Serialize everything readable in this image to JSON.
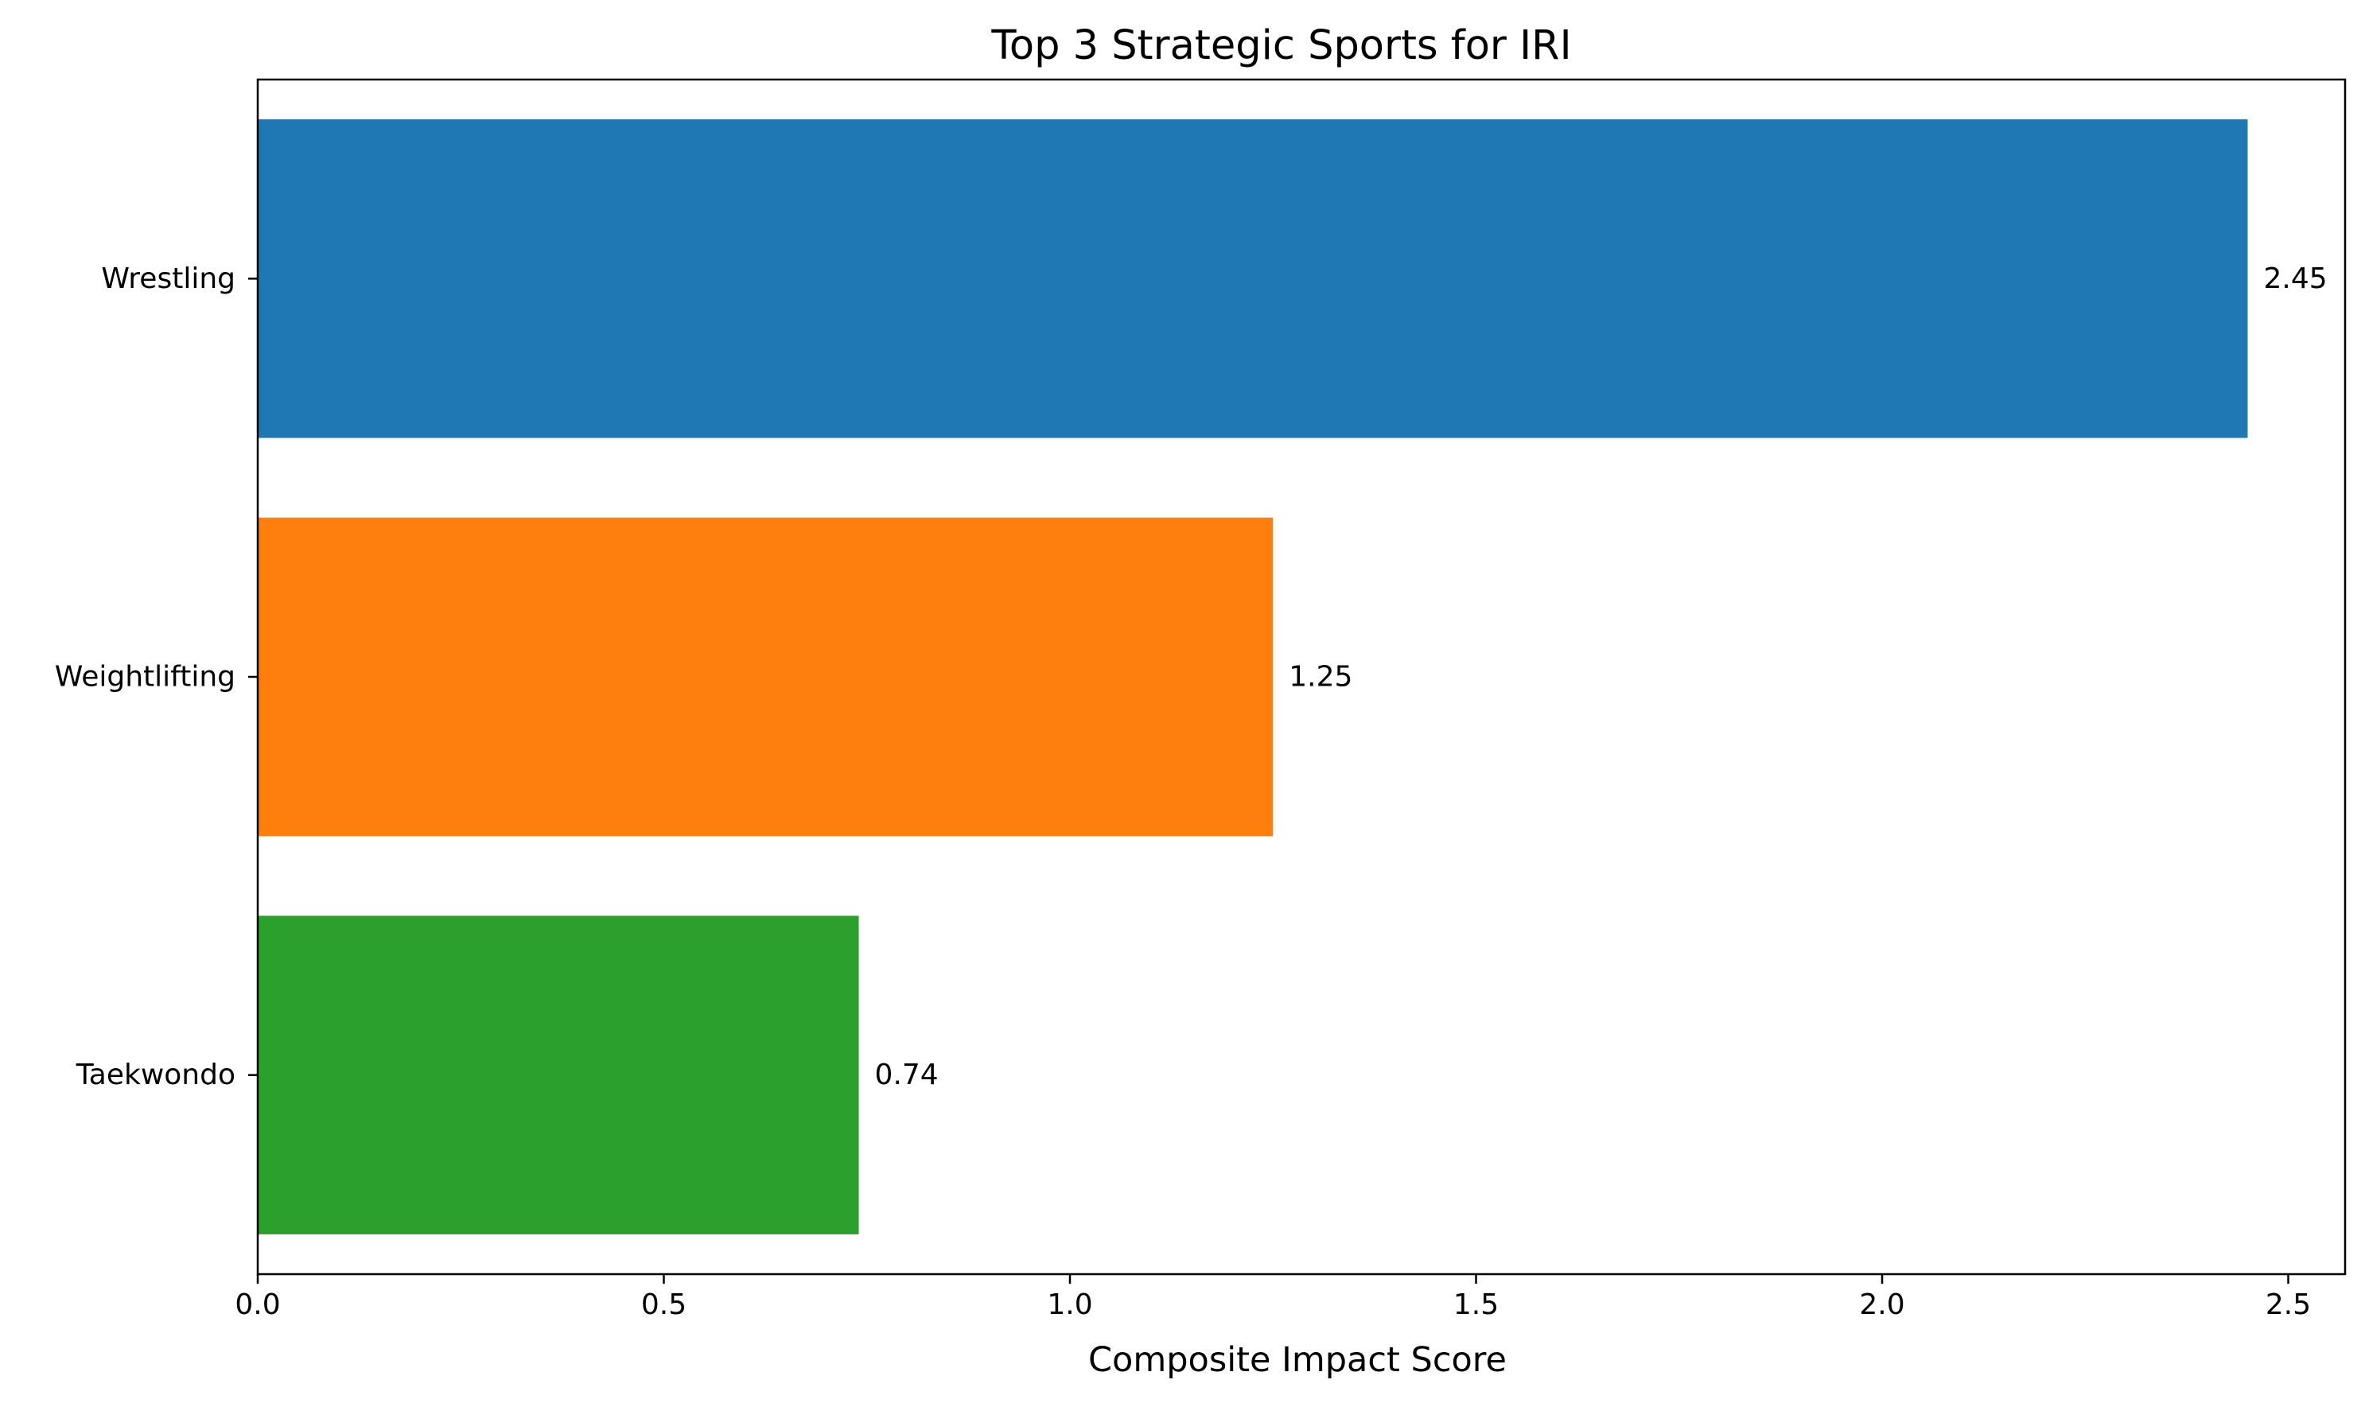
{
  "chart_data": {
    "type": "bar",
    "orientation": "horizontal",
    "title": "Top 3 Strategic Sports for IRI",
    "xlabel": "Composite Impact Score",
    "ylabel": "",
    "categories": [
      "Wrestling",
      "Weightlifting",
      "Taekwondo"
    ],
    "values": [
      2.45,
      1.25,
      0.74
    ],
    "data_labels": [
      "2.45",
      "1.25",
      "0.74"
    ],
    "colors": [
      "#1f77b4",
      "#ff7f0e",
      "#2ca02c"
    ],
    "xlim": [
      0,
      2.57
    ],
    "xticks": [
      0.0,
      0.5,
      1.0,
      1.5,
      2.0,
      2.5
    ],
    "xtick_labels": [
      "0.0",
      "0.5",
      "1.0",
      "1.5",
      "2.0",
      "2.5"
    ],
    "grid": false,
    "legend": false
  }
}
